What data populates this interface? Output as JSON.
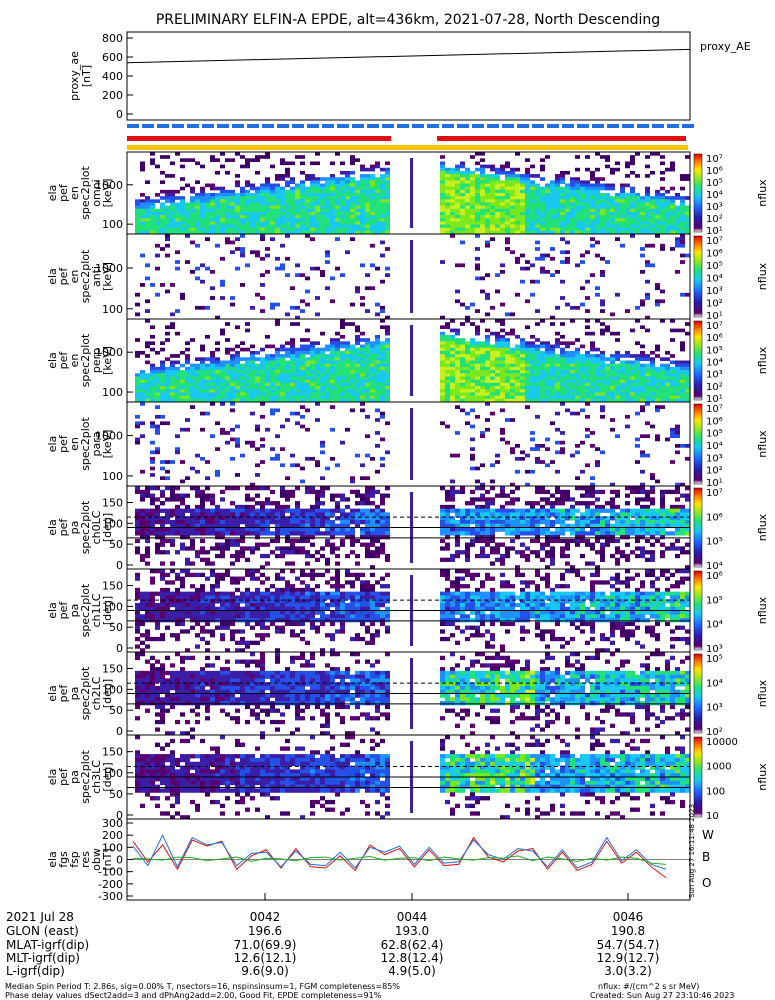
{
  "title": "PRELIMINARY ELFIN-A EPDE, alt=436km, 2021-07-28, North Descending",
  "colors": {
    "red": "#dd1111",
    "blue": "#1f6fe0",
    "yellow": "#f3c300",
    "green": "#22aa22"
  },
  "chart_data": [
    {
      "type": "line",
      "panel": "proxy_ae",
      "ylabel_lines": [
        "proxy_ae",
        "[nT]"
      ],
      "ylim": [
        0,
        800
      ],
      "yticks": [
        "800",
        "600",
        "400",
        "200",
        "0"
      ],
      "series": [
        {
          "name": "proxy_AE",
          "x": [
            "0040:30",
            "0046:45"
          ],
          "values": [
            540,
            680
          ]
        }
      ]
    },
    {
      "type": "heatmap",
      "panel": "pef energy spectrogram",
      "ylabel_lines": [
        "ela",
        "pef",
        "en",
        "spec2plot",
        "omni",
        "[keV]"
      ],
      "yticks": [
        "1000",
        "100"
      ],
      "colorbar": {
        "label": "nflux",
        "ticks": [
          "10⁷",
          "10⁶",
          "10⁵",
          "10⁴",
          "10³",
          "10²",
          "10¹"
        ]
      }
    },
    {
      "type": "heatmap",
      "panel": "pef energy spectrogram",
      "ylabel_lines": [
        "ela",
        "pef",
        "en",
        "spec2plot",
        "anti",
        "[keV]"
      ],
      "yticks": [
        "1000",
        "100"
      ],
      "colorbar": {
        "label": "nflux",
        "ticks": [
          "10⁷",
          "10⁶",
          "10⁵",
          "10⁴",
          "10³",
          "10²",
          "10¹"
        ]
      }
    },
    {
      "type": "heatmap",
      "panel": "pef energy spectrogram",
      "ylabel_lines": [
        "ela",
        "pef",
        "en",
        "spec2plot",
        "perp",
        "[keV]"
      ],
      "yticks": [
        "1000",
        "100"
      ],
      "colorbar": {
        "label": "nflux",
        "ticks": [
          "10⁷",
          "10⁶",
          "10⁵",
          "10⁴",
          "10³",
          "10²",
          "10¹"
        ]
      }
    },
    {
      "type": "heatmap",
      "panel": "pef energy spectrogram",
      "ylabel_lines": [
        "ela",
        "pef",
        "en",
        "spec2plot",
        "para",
        "[keV]"
      ],
      "yticks": [
        "1000",
        "100"
      ],
      "colorbar": {
        "label": "nflux",
        "ticks": [
          "10⁷",
          "10⁶",
          "10⁵",
          "10⁴",
          "10³",
          "10²",
          "10¹"
        ]
      }
    },
    {
      "type": "heatmap",
      "panel": "pef pitch angle spectrogram",
      "ylabel_lines": [
        "ela",
        "pef",
        "pa",
        "spec2plot",
        "ch0LC",
        "[deg]"
      ],
      "yticks": [
        "150",
        "100",
        "50",
        "0"
      ],
      "colorbar": {
        "label": "nflux",
        "ticks": [
          "10⁷",
          "10⁶",
          "10⁵",
          "10⁴"
        ]
      }
    },
    {
      "type": "heatmap",
      "panel": "pef pitch angle spectrogram",
      "ylabel_lines": [
        "ela",
        "pef",
        "pa",
        "spec2plot",
        "ch1LC",
        "[deg]"
      ],
      "yticks": [
        "150",
        "100",
        "50",
        "0"
      ],
      "colorbar": {
        "label": "nflux",
        "ticks": [
          "10⁶",
          "10⁵",
          "10⁴",
          "10³"
        ]
      }
    },
    {
      "type": "heatmap",
      "panel": "pef pitch angle spectrogram",
      "ylabel_lines": [
        "ela",
        "pef",
        "pa",
        "spec2plot",
        "ch2LC",
        "[deg]"
      ],
      "yticks": [
        "150",
        "100",
        "50",
        "0"
      ],
      "colorbar": {
        "label": "nflux",
        "ticks": [
          "10⁵",
          "10⁴",
          "10³",
          "10²"
        ]
      }
    },
    {
      "type": "heatmap",
      "panel": "pef pitch angle spectrogram",
      "ylabel_lines": [
        "ela",
        "pef",
        "pa",
        "spec2plot",
        "ch3LC",
        "[deg]"
      ],
      "yticks": [
        "150",
        "100",
        "50",
        "0"
      ],
      "colorbar": {
        "label": "nflux",
        "ticks": [
          "10000",
          "1000",
          "100",
          "10"
        ]
      }
    },
    {
      "type": "line",
      "panel": "fgs residuals",
      "ylabel_lines": [
        "ela",
        "fgs",
        "fsp",
        "res",
        "obw",
        "[nT]"
      ],
      "ylim": [
        -300,
        300
      ],
      "yticks": [
        "300",
        "200",
        "100",
        "0",
        "-100",
        "-200",
        "-300"
      ],
      "legend": [
        "W",
        "B",
        "O"
      ],
      "side_note": "Sun Aug 27 16:11:48 2023",
      "x": [
        0,
        1,
        2,
        3,
        4,
        5,
        6,
        7,
        8,
        9,
        10,
        11,
        12,
        13,
        14,
        15,
        16,
        17,
        18,
        19,
        20,
        21,
        22,
        23,
        24,
        25,
        26,
        27,
        28,
        29,
        30,
        31,
        32,
        33,
        34,
        35,
        36
      ],
      "series": [
        {
          "name": "W",
          "values": [
            150,
            -20,
            120,
            -80,
            160,
            110,
            150,
            -80,
            30,
            80,
            -70,
            90,
            -60,
            -70,
            30,
            -90,
            120,
            40,
            90,
            -60,
            80,
            -50,
            -40,
            180,
            20,
            -20,
            70,
            90,
            -80,
            60,
            -90,
            -40,
            150,
            -30,
            60,
            -60,
            -150
          ]
        },
        {
          "name": "B",
          "values": [
            110,
            -50,
            200,
            -60,
            180,
            120,
            140,
            -50,
            50,
            60,
            -60,
            70,
            -40,
            -50,
            60,
            -70,
            100,
            60,
            110,
            -40,
            100,
            -30,
            -20,
            160,
            40,
            0,
            90,
            70,
            -60,
            80,
            -70,
            -20,
            180,
            -10,
            80,
            -40,
            -80
          ]
        },
        {
          "name": "O",
          "values": [
            10,
            5,
            -5,
            20,
            15,
            -10,
            5,
            20,
            -15,
            10,
            5,
            -10,
            15,
            20,
            -5,
            10,
            25,
            -5,
            10,
            15,
            -10,
            20,
            5,
            -5,
            15,
            10,
            30,
            -10,
            20,
            5,
            -15,
            10,
            -5,
            20,
            10,
            -30,
            -40
          ]
        }
      ]
    }
  ],
  "xaxis": {
    "rows": [
      {
        "label": "2021 Jul 28",
        "values": [
          "0042",
          "0044",
          "0046"
        ]
      },
      {
        "label": "GLON (east)",
        "values": [
          "196.6",
          "193.0",
          "190.8"
        ]
      },
      {
        "label": "MLAT-igrf(dip)",
        "values": [
          "71.0(69.9)",
          "62.8(62.4)",
          "54.7(54.7)"
        ]
      },
      {
        "label": "MLT-igrf(dip)",
        "values": [
          "12.6(12.1)",
          "12.8(12.4)",
          "12.9(12.7)"
        ]
      },
      {
        "label": "L-igrf(dip)",
        "values": [
          "9.6(9.0)",
          "4.9(5.0)",
          "3.0(3.2)"
        ]
      }
    ]
  },
  "footer": {
    "left1": "Median Spin Period T: 2.86s, sig=0.00% T, nsectors=16, nspinsinsum=1, FGM completeness=85%",
    "left2": "Phase delay values dSect2add=3 and dPhAng2add=2.00, Good Fit, EPDE completeness=91%",
    "right1": "nflux: #/(cm^2 s sr MeV)",
    "right2": "Created: Sun Aug 27 23:10:46 2023"
  }
}
